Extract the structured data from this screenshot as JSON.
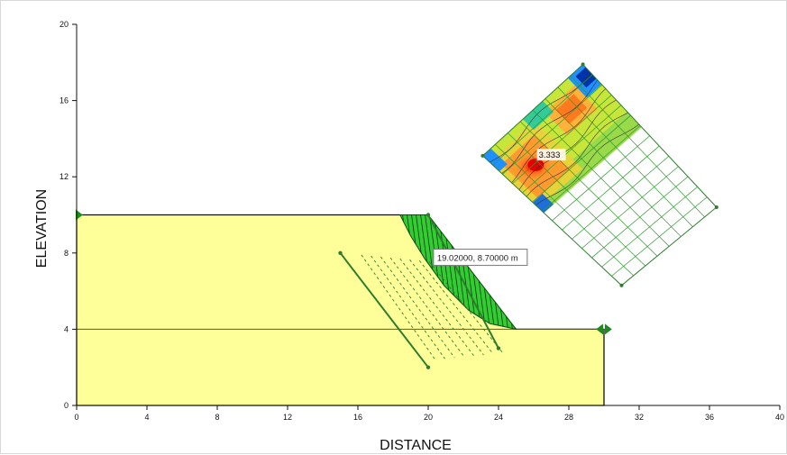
{
  "chart_data": {
    "type": "slope-stability-section",
    "xlabel": "DISTANCE",
    "ylabel": "ELEVATION",
    "xlim": [
      0,
      40
    ],
    "ylim": [
      0,
      20
    ],
    "x_ticks": [
      "0",
      "4",
      "8",
      "12",
      "16",
      "20",
      "24",
      "28",
      "32",
      "36",
      "40"
    ],
    "y_ticks": [
      "0",
      "4",
      "8",
      "12",
      "16",
      "20"
    ],
    "ground_profile": [
      [
        0,
        10
      ],
      [
        18.4,
        10
      ],
      [
        25,
        4
      ],
      [
        30,
        4
      ],
      [
        30,
        0
      ],
      [
        0,
        0
      ]
    ],
    "layer_boundary_elevation": 4,
    "slip_mass": [
      [
        18.4,
        10
      ],
      [
        20,
        10
      ],
      [
        25,
        4
      ],
      [
        23.5,
        4.3
      ],
      [
        22.3,
        5
      ],
      [
        20.9,
        6.3
      ],
      [
        19.8,
        7.7
      ],
      [
        19,
        8.9
      ]
    ],
    "entry_line": {
      "from": [
        15,
        8
      ],
      "to": [
        20,
        2
      ]
    },
    "exit_line": {
      "from": [
        20,
        10
      ],
      "to": [
        24,
        3
      ]
    },
    "tooltip": {
      "text": "19.02000, 8.70000 m",
      "at": [
        20.3,
        8.2
      ]
    },
    "fs_grid_corners": [
      [
        23.1,
        13.1
      ],
      [
        28.8,
        17.9
      ],
      [
        36.4,
        10.4
      ],
      [
        31,
        6.3
      ]
    ],
    "fs_grid_cols": 8,
    "fs_grid_rows": 14,
    "min_factor_of_safety": "3.333",
    "colors": {
      "soil": "#ffff99",
      "slip": "#33cc33",
      "line": "#2e7d2e",
      "frame": "#111111"
    }
  }
}
